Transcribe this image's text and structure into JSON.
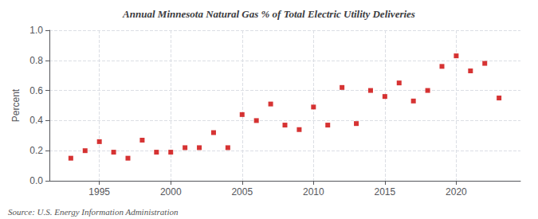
{
  "chart_data": {
    "type": "scatter",
    "title": "Annual Minnesota Natural Gas % of Total Electric Utility Deliveries",
    "ylabel": "Percent",
    "annotations": [
      "Source: U.S. Energy Information Administration"
    ],
    "x": [
      1993,
      1994,
      1995,
      1996,
      1997,
      1998,
      1999,
      2000,
      2001,
      2002,
      2003,
      2004,
      2005,
      2006,
      2007,
      2008,
      2009,
      2010,
      2011,
      2012,
      2013,
      2014,
      2015,
      2016,
      2017,
      2018,
      2019,
      2020,
      2021,
      2022,
      2023
    ],
    "values": [
      0.15,
      0.2,
      0.26,
      0.19,
      0.15,
      0.27,
      0.19,
      0.19,
      0.22,
      0.22,
      0.32,
      0.22,
      0.44,
      0.4,
      0.51,
      0.37,
      0.34,
      0.49,
      0.37,
      0.62,
      0.38,
      0.6,
      0.56,
      0.65,
      0.53,
      0.6,
      0.76,
      0.83,
      0.73,
      0.78,
      0.55
    ],
    "color": "#cc0000",
    "marker": "square",
    "xlim": [
      1991.5,
      2024.5
    ],
    "xticks": [
      1995,
      2000,
      2005,
      2010,
      2015,
      2020
    ],
    "ylim": [
      0.0,
      1.0
    ],
    "yticks": [
      {
        "value": 0.0,
        "label": "0.0"
      },
      0.2,
      0.4,
      0.6,
      0.8,
      {
        "value": 1.0,
        "label": "1.0"
      }
    ],
    "grid": true
  }
}
